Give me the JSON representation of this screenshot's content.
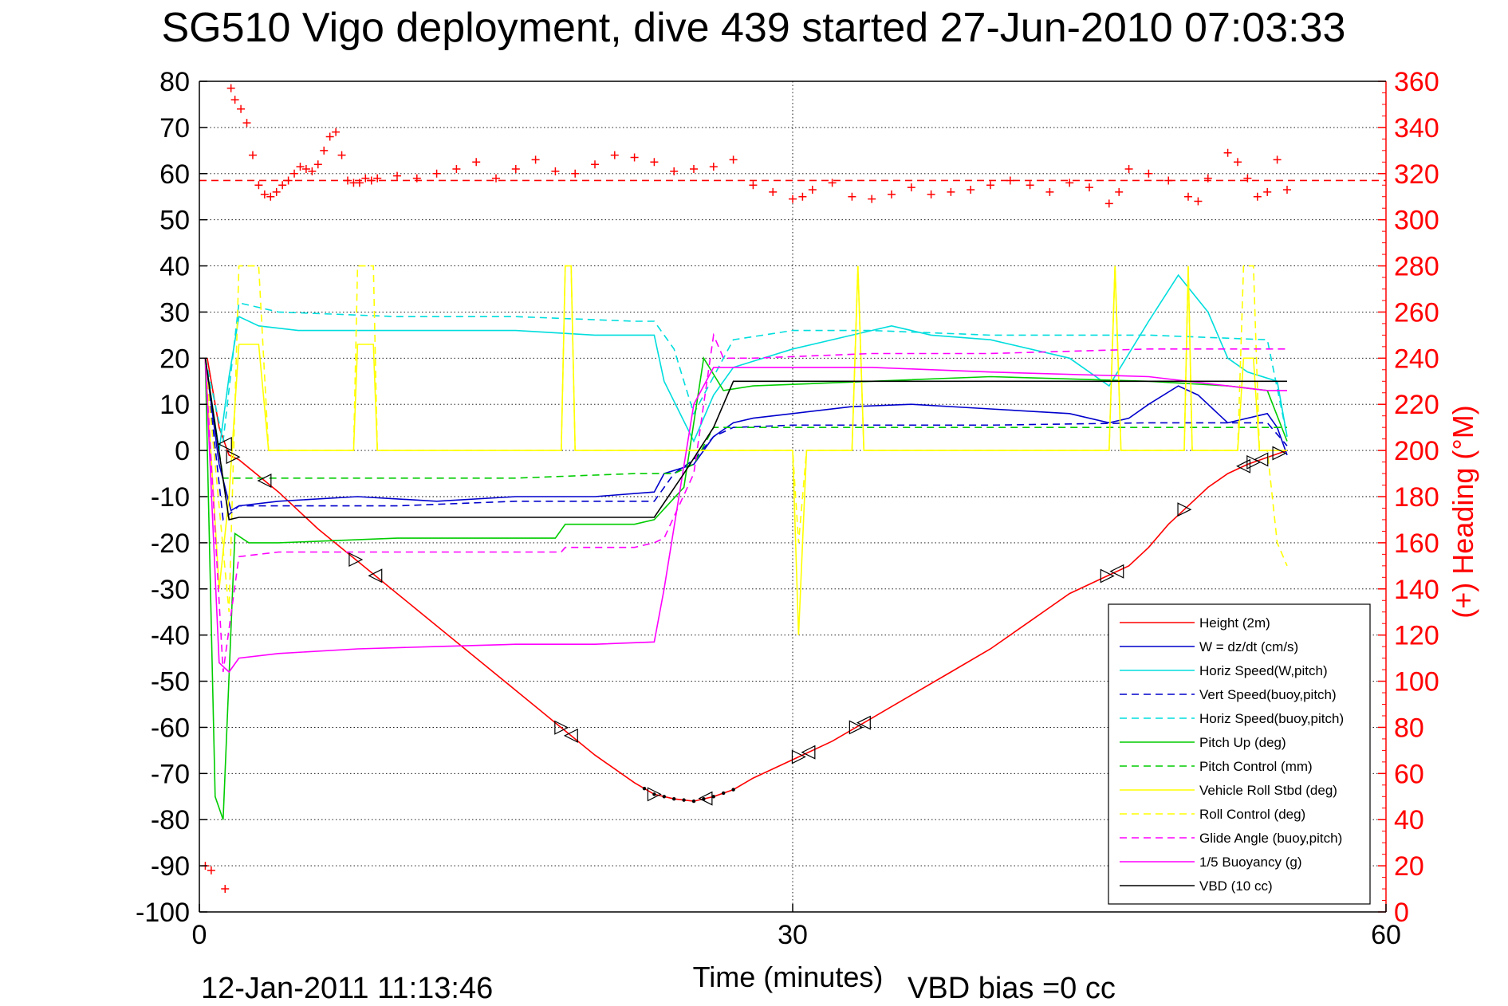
{
  "chart_data": {
    "type": "line",
    "title": "SG510 Vigo deployment, dive 439 started 27-Jun-2010 07:03:33",
    "xlabel": "Time (minutes)",
    "ylabel_right": "(+) Heading (°M)",
    "footer_left": "12-Jan-2011 11:13:46",
    "footer_right": "VBD bias =0 cc",
    "xlim": [
      0,
      60
    ],
    "ylim_left": [
      -100,
      80
    ],
    "ylim_right": [
      0,
      360
    ],
    "x_ticks": [
      "0",
      "30",
      "60"
    ],
    "y_ticks_left": [
      "80",
      "70",
      "60",
      "50",
      "40",
      "30",
      "20",
      "10",
      "0",
      "-10",
      "-20",
      "-30",
      "-40",
      "-50",
      "-60",
      "-70",
      "-80",
      "-90",
      "-100"
    ],
    "y_ticks_right": [
      "360",
      "340",
      "320",
      "300",
      "280",
      "260",
      "240",
      "220",
      "200",
      "180",
      "160",
      "140",
      "120",
      "100",
      "80",
      "60",
      "40",
      "20",
      "0"
    ],
    "grid": "dotted",
    "legend_position": "bottom-right",
    "series": [
      {
        "name": "Height (2m)",
        "color": "#ff0000",
        "dash": "solid",
        "x": [
          0.4,
          1.0,
          1.5,
          2.0,
          4.0,
          6.0,
          8.0,
          10.0,
          12.0,
          14.0,
          16.0,
          18.0,
          20.0,
          22.0,
          23.0,
          24.0,
          25.0,
          26.0,
          27.0,
          28.0,
          30.0,
          32.0,
          34.0,
          36.0,
          38.0,
          40.0,
          42.0,
          44.0,
          46.0,
          47.0,
          48.0,
          49.0,
          50.0,
          51.0,
          52.0,
          53.0,
          54.0,
          55.0
        ],
        "y": [
          20,
          5,
          -1,
          -2,
          -9,
          -17,
          -24,
          -31,
          -38,
          -45,
          -52,
          -59,
          -66,
          -72,
          -74.5,
          -75.5,
          -76,
          -75,
          -73.5,
          -71,
          -67,
          -63,
          -58,
          -53,
          -48,
          -43,
          -37,
          -31,
          -27,
          -25,
          -21,
          -16,
          -12,
          -8,
          -5,
          -3,
          -1.5,
          0
        ]
      },
      {
        "name": "W = dz/dt (cm/s)",
        "color": "#0000cc",
        "dash": "solid",
        "x": [
          0.3,
          1.0,
          1.6,
          2.0,
          4.0,
          8.0,
          12.0,
          16.0,
          20.0,
          23.0,
          23.5,
          25.0,
          26.0,
          27.0,
          28.0,
          30.0,
          33.0,
          36.0,
          40.0,
          44.0,
          46.0,
          47.0,
          48.0,
          49.5,
          50.5,
          52.0,
          54.0,
          54.5,
          55.0
        ],
        "y": [
          20,
          -3,
          -13,
          -12,
          -11,
          -10,
          -11,
          -10,
          -10,
          -9,
          -5,
          -3,
          3,
          6,
          7,
          8,
          9.5,
          10,
          9,
          8,
          6,
          7,
          10,
          14,
          12,
          6,
          8,
          5,
          -1
        ]
      },
      {
        "name": "Horiz Speed(W,pitch)",
        "color": "#00dddd",
        "dash": "solid",
        "x": [
          0.3,
          1.0,
          1.5,
          2.0,
          3.0,
          5.0,
          8.0,
          12.0,
          16.0,
          20.0,
          23.0,
          23.5,
          25.0,
          26.0,
          27.0,
          30.0,
          33.0,
          35.0,
          37.0,
          40.0,
          44.0,
          46.0,
          48.0,
          49.5,
          51.0,
          52.0,
          53.0,
          54.5,
          55.0
        ],
        "y": [
          20,
          0,
          16,
          29,
          27,
          26,
          26,
          26,
          26,
          25,
          25,
          15,
          2,
          12,
          18,
          22,
          25,
          27,
          25,
          24,
          20,
          14,
          28,
          38,
          30,
          20,
          17,
          15,
          3
        ]
      },
      {
        "name": "Vert Speed(buoy,pitch)",
        "color": "#0000cc",
        "dash": "dashed",
        "x": [
          0.3,
          1.2,
          2.0,
          4.0,
          10.0,
          16.0,
          22.0,
          23.0,
          24.0,
          25.0,
          26.0,
          27.0,
          30.0,
          34.0,
          40.0,
          48.0,
          54.0,
          55.0
        ],
        "y": [
          20,
          -15,
          -12,
          -12,
          -12,
          -11,
          -11,
          -11,
          -5,
          -2,
          3,
          5,
          5.5,
          5.5,
          5.5,
          6,
          6,
          1
        ]
      },
      {
        "name": "Horiz Speed(buoy,pitch)",
        "color": "#00dddd",
        "dash": "dashed",
        "x": [
          0.3,
          1.2,
          2.0,
          4.0,
          10.0,
          16.0,
          22.0,
          23.0,
          24.0,
          25.0,
          26.0,
          27.0,
          30.0,
          34.0,
          40.0,
          48.0,
          54.0,
          55.0
        ],
        "y": [
          20,
          2,
          32,
          30,
          29,
          29,
          28,
          28,
          22,
          8,
          16,
          24,
          26,
          26,
          25,
          25,
          24,
          3
        ]
      },
      {
        "name": "Pitch Up (deg)",
        "color": "#00cc00",
        "dash": "solid",
        "x": [
          0.3,
          0.8,
          1.2,
          1.8,
          2.5,
          4.0,
          10.0,
          16.0,
          18.0,
          18.5,
          22.0,
          23.0,
          24.5,
          25.5,
          26.5,
          28.0,
          34.0,
          40.0,
          48.0,
          52.0,
          54.0,
          55.0
        ],
        "y": [
          20,
          -75,
          -80,
          -18,
          -20,
          -20,
          -19,
          -19,
          -19,
          -16,
          -16,
          -15,
          -8,
          20,
          13,
          14,
          15,
          16,
          15,
          14,
          13,
          2
        ]
      },
      {
        "name": "Pitch Control (mm)",
        "color": "#00cc00",
        "dash": "dashed",
        "x": [
          0.3,
          1.2,
          2.0,
          4.0,
          10.0,
          16.0,
          22.0,
          23.0,
          24.0,
          25.0,
          26.0,
          27.0,
          30.0,
          40.0,
          50.0,
          55.0
        ],
        "y": [
          20,
          -6,
          -6,
          -6,
          -6,
          -6,
          -5,
          -5,
          -5,
          -3,
          5,
          5,
          5,
          5,
          5,
          5
        ]
      },
      {
        "name": "Vehicle Roll Stbd (deg)",
        "color": "#ffff00",
        "dash": "solid",
        "x": [
          0.3,
          1.0,
          1.5,
          2.0,
          3.0,
          3.5,
          7.8,
          8.0,
          8.8,
          9.0,
          18.3,
          18.5,
          18.8,
          19.0,
          23.5,
          24.0,
          30.0,
          30.3,
          30.7,
          31.0,
          33.0,
          33.3,
          33.6,
          34.0,
          46.0,
          46.3,
          46.6,
          47.0,
          49.8,
          50.0,
          50.2,
          50.4,
          52.5,
          52.8,
          53.3,
          53.6,
          54.0,
          55.0
        ],
        "y": [
          20,
          -30,
          -10,
          23,
          23,
          0,
          0,
          23,
          23,
          0,
          0,
          40,
          40,
          0,
          0,
          0,
          0,
          -40,
          0,
          0,
          0,
          40,
          0,
          0,
          0,
          40,
          0,
          0,
          0,
          40,
          0,
          0,
          0,
          20,
          20,
          0,
          0,
          0
        ]
      },
      {
        "name": "Roll Control (deg)",
        "color": "#ffff00",
        "dash": "dashed",
        "x": [
          0.3,
          1.5,
          2.0,
          3.0,
          3.5,
          7.8,
          8.0,
          8.8,
          9.0,
          18.3,
          18.5,
          18.8,
          19.0,
          30.0,
          30.3,
          30.7,
          31.0,
          33.0,
          33.3,
          33.6,
          34.0,
          46.0,
          46.3,
          46.6,
          47.0,
          49.8,
          50.0,
          50.2,
          50.4,
          52.5,
          52.8,
          53.3,
          53.6,
          54.0,
          54.5,
          55.0
        ],
        "y": [
          20,
          -35,
          40,
          40,
          0,
          0,
          40,
          40,
          0,
          0,
          40,
          40,
          0,
          0,
          -20,
          0,
          0,
          0,
          40,
          0,
          0,
          0,
          40,
          0,
          0,
          0,
          40,
          0,
          0,
          0,
          40,
          40,
          0,
          0,
          -20,
          -25
        ]
      },
      {
        "name": "Glide Angle (buoy,pitch)",
        "color": "#ff00ff",
        "dash": "dashed",
        "x": [
          0.3,
          1.2,
          2.0,
          4.0,
          10.0,
          16.0,
          18.3,
          18.5,
          22.0,
          23.0,
          23.5,
          25.0,
          26.0,
          26.5,
          27.0,
          28.0,
          34.0,
          40.0,
          48.0,
          54.0,
          55.0
        ],
        "y": [
          20,
          -48,
          -23,
          -22,
          -22,
          -22,
          -22,
          -21,
          -21,
          -20,
          -19,
          -5,
          25,
          20,
          20,
          20,
          21,
          21,
          22,
          22,
          22
        ]
      },
      {
        "name": "1/5 Buoyancy (g)",
        "color": "#ff00ff",
        "dash": "solid",
        "x": [
          0.3,
          1.0,
          1.5,
          2.0,
          4.0,
          8.0,
          12.0,
          16.0,
          20.0,
          23.0,
          23.5,
          25.0,
          26.0,
          27.0,
          28.0,
          34.0,
          40.0,
          48.0,
          52.0,
          54.0,
          55.0
        ],
        "y": [
          20,
          -46,
          -48,
          -45,
          -44,
          -43,
          -42.5,
          -42,
          -42,
          -41.5,
          -30,
          10,
          18,
          18,
          18,
          18,
          17,
          16,
          14,
          13,
          13
        ]
      },
      {
        "name": "VBD (10 cc)",
        "color": "#000000",
        "dash": "solid",
        "x": [
          0.3,
          1.5,
          2.0,
          4.0,
          10.0,
          16.0,
          22.0,
          23.0,
          24.5,
          26.0,
          27.0,
          30.0,
          40.0,
          50.0,
          55.0
        ],
        "y": [
          20,
          -15,
          -14.5,
          -14.5,
          -14.5,
          -14.5,
          -14.5,
          -14.5,
          -5,
          5,
          15,
          15,
          15,
          15,
          15
        ]
      }
    ],
    "heading": {
      "name": "Heading",
      "color": "#ff0000",
      "marker": "+",
      "mean": 317,
      "x": [
        0.3,
        0.6,
        1.3,
        1.6,
        1.8,
        2.1,
        2.4,
        2.7,
        3.0,
        3.3,
        3.6,
        3.9,
        4.2,
        4.5,
        4.8,
        5.1,
        5.4,
        5.7,
        6.0,
        6.3,
        6.6,
        6.9,
        7.2,
        7.5,
        7.8,
        8.1,
        8.4,
        8.7,
        9.0,
        10.0,
        11.0,
        12.0,
        13.0,
        14.0,
        15.0,
        16.0,
        17.0,
        18.0,
        19.0,
        20.0,
        21.0,
        22.0,
        23.0,
        24.0,
        25.0,
        26.0,
        27.0,
        28.0,
        29.0,
        30.0,
        30.5,
        31.0,
        32.0,
        33.0,
        34.0,
        35.0,
        36.0,
        37.0,
        38.0,
        39.0,
        40.0,
        41.0,
        42.0,
        43.0,
        44.0,
        45.0,
        46.0,
        46.5,
        47.0,
        48.0,
        49.0,
        50.0,
        50.5,
        51.0,
        52.0,
        52.5,
        53.0,
        53.5,
        54.0,
        54.5,
        55.0
      ],
      "y": [
        20,
        18,
        10,
        357,
        352,
        348,
        342,
        328,
        315,
        311,
        310,
        312,
        315,
        317,
        320,
        323,
        322,
        321,
        324,
        330,
        336,
        338,
        328,
        317,
        316,
        316,
        318,
        317,
        318,
        319,
        318,
        320,
        322,
        325,
        318,
        322,
        326,
        321,
        320,
        324,
        328,
        327,
        325,
        321,
        322,
        323,
        326,
        315,
        312,
        309,
        310,
        313,
        316,
        310,
        309,
        311,
        314,
        311,
        312,
        313,
        315,
        317,
        315,
        312,
        316,
        314,
        307,
        312,
        322,
        320,
        317,
        310,
        308,
        318,
        329,
        325,
        318,
        310,
        312,
        326,
        313
      ]
    }
  }
}
